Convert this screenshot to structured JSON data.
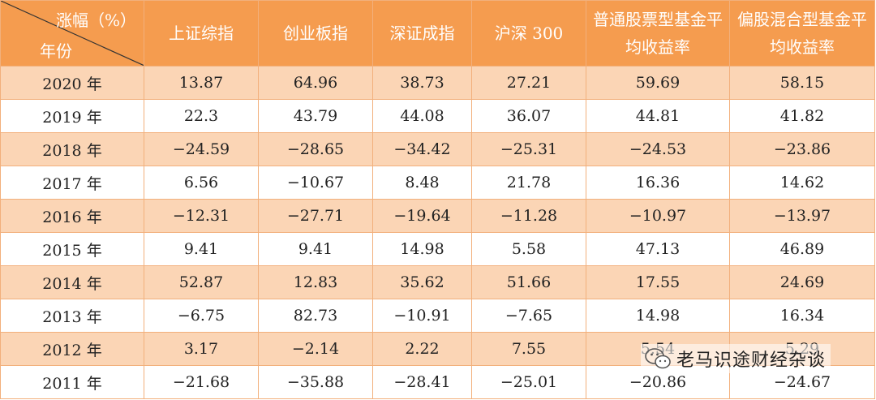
{
  "header": {
    "corner_top": "涨幅（%）",
    "corner_bottom": "年份",
    "columns": [
      "上证综指",
      "创业板指",
      "深证成指",
      "沪深 300",
      "普通股票型基金平均收益率",
      "偏股混合型基金平均收益率"
    ]
  },
  "rows": [
    {
      "year": "2020 年",
      "values": [
        "13.87",
        "64.96",
        "38.73",
        "27.21",
        "59.69",
        "58.15"
      ]
    },
    {
      "year": "2019 年",
      "values": [
        "22.3",
        "43.79",
        "44.08",
        "36.07",
        "44.81",
        "41.82"
      ]
    },
    {
      "year": "2018 年",
      "values": [
        "−24.59",
        "−28.65",
        "−34.42",
        "−25.31",
        "−24.53",
        "−23.86"
      ]
    },
    {
      "year": "2017 年",
      "values": [
        "6.56",
        "−10.67",
        "8.48",
        "21.78",
        "16.36",
        "14.62"
      ]
    },
    {
      "year": "2016 年",
      "values": [
        "−12.31",
        "−27.71",
        "−19.64",
        "−11.28",
        "−10.97",
        "−13.97"
      ]
    },
    {
      "year": "2015 年",
      "values": [
        "9.41",
        "9.41",
        "14.98",
        "5.58",
        "47.13",
        "46.89"
      ]
    },
    {
      "year": "2014 年",
      "values": [
        "52.87",
        "12.83",
        "35.62",
        "51.66",
        "17.55",
        "24.69"
      ]
    },
    {
      "year": "2013 年",
      "values": [
        "−6.75",
        "82.73",
        "−10.91",
        "−7.65",
        "14.98",
        "16.34"
      ]
    },
    {
      "year": "2012 年",
      "values": [
        "3.17",
        "−2.14",
        "2.22",
        "7.55",
        "5.54",
        "5.29"
      ]
    },
    {
      "year": "2011 年",
      "values": [
        "−21.68",
        "−35.88",
        "−28.41",
        "−25.01",
        "−20.86",
        "−24.67"
      ]
    }
  ],
  "watermark": {
    "text": "老马识途财经杂谈",
    "icon": "wechat-icon"
  },
  "colors": {
    "header_bg": "#f59c4f",
    "odd_row_bg": "#fbd5b5",
    "even_row_bg": "#ffffff",
    "border": "#f2b07c"
  }
}
